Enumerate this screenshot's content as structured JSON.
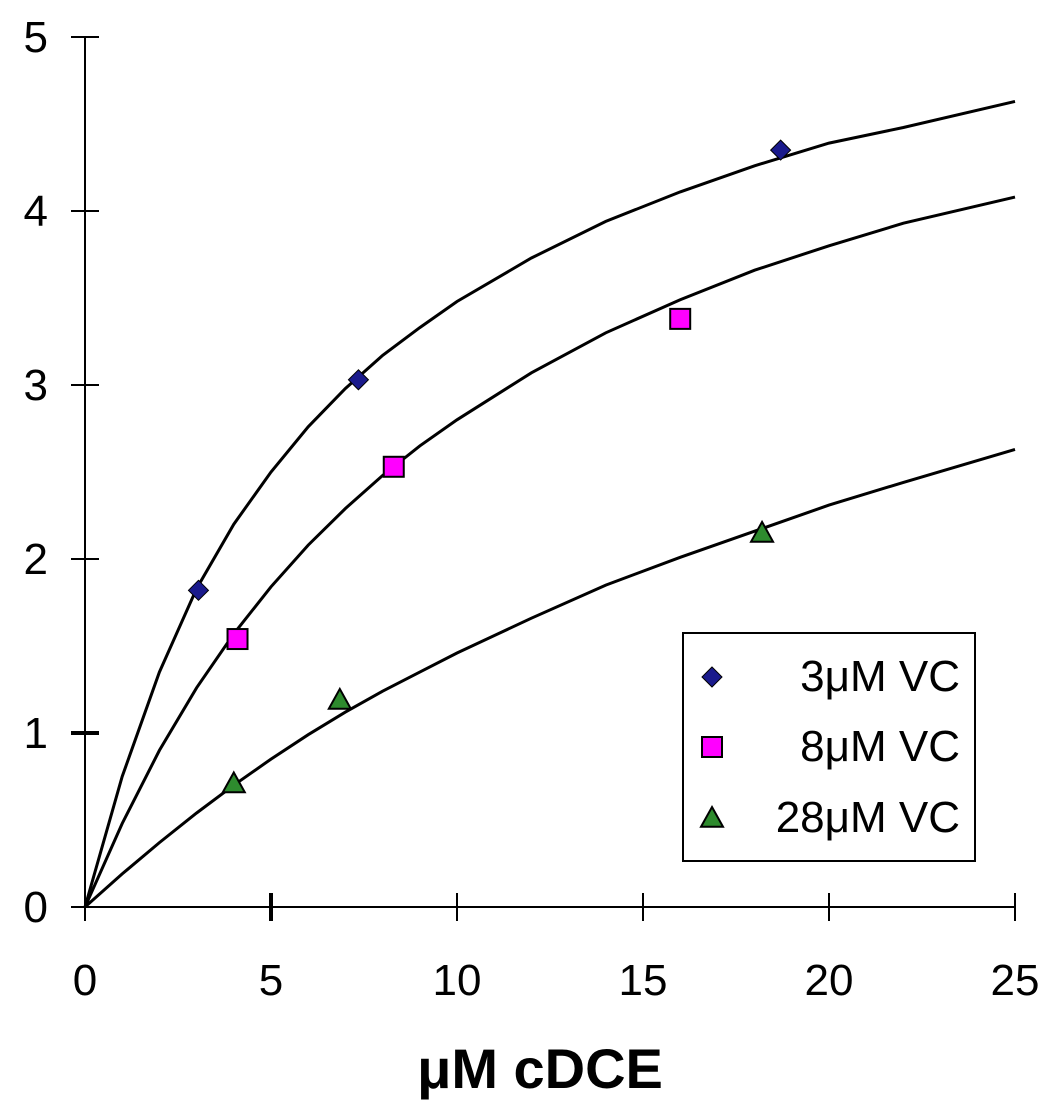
{
  "chart_data": {
    "type": "scatter",
    "title": "",
    "xlabel": "μM cDCE",
    "ylabel": "",
    "xlim": [
      0,
      25
    ],
    "ylim": [
      0,
      5
    ],
    "x_ticks": [
      "0",
      "5",
      "10",
      "15",
      "20",
      "25"
    ],
    "y_ticks": [
      "0",
      "1",
      "2",
      "3",
      "4",
      "5"
    ],
    "grid": false,
    "legend_position": "bottom-right",
    "series": [
      {
        "name": "3μM VC",
        "marker": "diamond",
        "color": "#1a1a8c",
        "points": [
          [
            3.05,
            1.82
          ],
          [
            7.35,
            3.03
          ],
          [
            18.7,
            4.35
          ]
        ],
        "fit_curve": [
          [
            0,
            0
          ],
          [
            1,
            0.75
          ],
          [
            2,
            1.35
          ],
          [
            3,
            1.83
          ],
          [
            4,
            2.2
          ],
          [
            5,
            2.5
          ],
          [
            6,
            2.76
          ],
          [
            7,
            2.98
          ],
          [
            8,
            3.17
          ],
          [
            9,
            3.33
          ],
          [
            10,
            3.48
          ],
          [
            12,
            3.73
          ],
          [
            14,
            3.94
          ],
          [
            16,
            4.11
          ],
          [
            18,
            4.26
          ],
          [
            20,
            4.39
          ],
          [
            22,
            4.48
          ],
          [
            25,
            4.63
          ]
        ]
      },
      {
        "name": "8μM VC",
        "marker": "square",
        "color": "#ff00ff",
        "points": [
          [
            4.1,
            1.54
          ],
          [
            8.3,
            2.53
          ],
          [
            16.0,
            3.38
          ]
        ],
        "fit_curve": [
          [
            0,
            0
          ],
          [
            1,
            0.48
          ],
          [
            2,
            0.9
          ],
          [
            3,
            1.26
          ],
          [
            4,
            1.57
          ],
          [
            5,
            1.84
          ],
          [
            6,
            2.08
          ],
          [
            7,
            2.29
          ],
          [
            8,
            2.48
          ],
          [
            9,
            2.65
          ],
          [
            10,
            2.8
          ],
          [
            12,
            3.07
          ],
          [
            14,
            3.3
          ],
          [
            16,
            3.49
          ],
          [
            18,
            3.66
          ],
          [
            20,
            3.8
          ],
          [
            22,
            3.93
          ],
          [
            25,
            4.08
          ]
        ]
      },
      {
        "name": "28μM VC",
        "marker": "triangle",
        "color": "#2e8b2e",
        "points": [
          [
            4.0,
            0.71
          ],
          [
            6.85,
            1.19
          ],
          [
            18.2,
            2.15
          ]
        ],
        "fit_curve": [
          [
            0,
            0
          ],
          [
            1,
            0.19
          ],
          [
            2,
            0.37
          ],
          [
            3,
            0.54
          ],
          [
            4,
            0.7
          ],
          [
            5,
            0.85
          ],
          [
            6,
            0.99
          ],
          [
            7,
            1.12
          ],
          [
            8,
            1.24
          ],
          [
            9,
            1.35
          ],
          [
            10,
            1.46
          ],
          [
            12,
            1.66
          ],
          [
            14,
            1.85
          ],
          [
            16,
            2.01
          ],
          [
            18,
            2.16
          ],
          [
            20,
            2.31
          ],
          [
            22,
            2.44
          ],
          [
            25,
            2.63
          ]
        ]
      }
    ]
  }
}
